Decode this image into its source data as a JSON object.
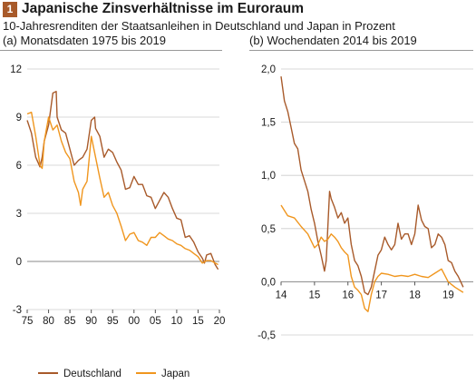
{
  "header": {
    "number": "1",
    "title": "Japanische Zinsverhältnisse im Euroraum",
    "subtitle": "10-Jahresrenditen der Staatsanleihen in Deutschland und Japan in Prozent"
  },
  "colors": {
    "deutschland": "#a85a2a",
    "japan": "#f0961e",
    "grid": "#cccccc",
    "zero": "#888888"
  },
  "chart_data": [
    {
      "type": "line",
      "title": "(a) Monatsdaten 1975 bis 2019",
      "xlabel": "",
      "ylabel": "",
      "xlim": [
        1975,
        2020
      ],
      "ylim": [
        -3,
        12
      ],
      "xticks": [
        75,
        80,
        85,
        90,
        95,
        "00",
        "05",
        10,
        15,
        20
      ],
      "yticks": [
        -3,
        0,
        3,
        6,
        9,
        12
      ],
      "grid": true,
      "series": [
        {
          "name": "Deutschland",
          "x": [
            1975,
            1976,
            1977,
            1978,
            1978.5,
            1979,
            1980,
            1981,
            1981.8,
            1982,
            1983,
            1984,
            1985,
            1986,
            1987,
            1988,
            1989,
            1990,
            1990.8,
            1991,
            1992,
            1993,
            1994,
            1995,
            1996,
            1997,
            1998,
            1999,
            2000,
            2001,
            2002,
            2003,
            2004,
            2005,
            2006,
            2007,
            2008,
            2009,
            2010,
            2011,
            2012,
            2013,
            2014,
            2015,
            2016,
            2016.5,
            2017,
            2018,
            2019,
            2019.7
          ],
          "values": [
            8.8,
            8.0,
            6.5,
            5.9,
            6.5,
            7.5,
            8.5,
            10.5,
            10.6,
            9.0,
            8.2,
            8.0,
            7.0,
            6.0,
            6.3,
            6.5,
            7.0,
            8.8,
            9.0,
            8.3,
            7.8,
            6.5,
            7.0,
            6.8,
            6.2,
            5.7,
            4.5,
            4.6,
            5.3,
            4.8,
            4.8,
            4.1,
            4.0,
            3.3,
            3.8,
            4.3,
            4.0,
            3.3,
            2.7,
            2.6,
            1.5,
            1.6,
            1.2,
            0.6,
            0.2,
            -0.1,
            0.4,
            0.5,
            -0.2,
            -0.5
          ]
        },
        {
          "name": "Japan",
          "x": [
            1975,
            1976,
            1977,
            1978,
            1978.5,
            1979,
            1980,
            1981,
            1982,
            1983,
            1984,
            1985,
            1986,
            1987,
            1987.5,
            1988,
            1989,
            1990,
            1991,
            1992,
            1993,
            1994,
            1995,
            1996,
            1997,
            1998,
            1999,
            2000,
            2001,
            2002,
            2003,
            2004,
            2005,
            2006,
            2007,
            2008,
            2009,
            2010,
            2011,
            2012,
            2013,
            2014,
            2015,
            2016,
            2017,
            2018,
            2019,
            2019.7
          ],
          "values": [
            9.2,
            9.3,
            7.8,
            6.0,
            5.8,
            7.5,
            9.0,
            8.2,
            8.5,
            7.5,
            6.8,
            6.4,
            5.0,
            4.3,
            3.5,
            4.5,
            5.0,
            7.8,
            6.5,
            5.2,
            4.0,
            4.3,
            3.5,
            3.0,
            2.2,
            1.3,
            1.7,
            1.8,
            1.3,
            1.2,
            1.0,
            1.5,
            1.5,
            1.8,
            1.6,
            1.4,
            1.3,
            1.1,
            1.0,
            0.8,
            0.7,
            0.5,
            0.3,
            -0.1,
            0.05,
            0.05,
            -0.1,
            -0.2
          ]
        }
      ]
    },
    {
      "type": "line",
      "title": "(b) Wochendaten 2014 bis 2019",
      "xlabel": "",
      "ylabel": "",
      "xlim": [
        2014,
        2019.75
      ],
      "ylim": [
        -0.5,
        2.0
      ],
      "xticks": [
        14,
        15,
        16,
        17,
        18,
        19
      ],
      "yticks": [
        "-0,5",
        "0,0",
        "0,5",
        "1,0",
        "1,5",
        "2,0"
      ],
      "grid": true,
      "series": [
        {
          "name": "Deutschland",
          "x": [
            2014.0,
            2014.1,
            2014.2,
            2014.3,
            2014.4,
            2014.5,
            2014.6,
            2014.7,
            2014.8,
            2014.9,
            2015.0,
            2015.1,
            2015.2,
            2015.3,
            2015.35,
            2015.45,
            2015.5,
            2015.6,
            2015.7,
            2015.8,
            2015.9,
            2016.0,
            2016.1,
            2016.2,
            2016.3,
            2016.4,
            2016.5,
            2016.6,
            2016.7,
            2016.8,
            2016.9,
            2017.0,
            2017.1,
            2017.2,
            2017.3,
            2017.4,
            2017.5,
            2017.6,
            2017.7,
            2017.8,
            2017.9,
            2018.0,
            2018.1,
            2018.2,
            2018.3,
            2018.4,
            2018.5,
            2018.6,
            2018.7,
            2018.8,
            2018.9,
            2019.0,
            2019.1,
            2019.2,
            2019.3,
            2019.45
          ],
          "values": [
            1.93,
            1.7,
            1.6,
            1.45,
            1.3,
            1.25,
            1.05,
            0.95,
            0.85,
            0.68,
            0.55,
            0.38,
            0.25,
            0.1,
            0.2,
            0.85,
            0.78,
            0.7,
            0.6,
            0.65,
            0.55,
            0.6,
            0.35,
            0.2,
            0.15,
            0.05,
            -0.1,
            -0.12,
            -0.05,
            0.1,
            0.25,
            0.3,
            0.42,
            0.35,
            0.3,
            0.35,
            0.55,
            0.4,
            0.45,
            0.45,
            0.35,
            0.45,
            0.72,
            0.58,
            0.52,
            0.5,
            0.32,
            0.35,
            0.45,
            0.42,
            0.35,
            0.2,
            0.18,
            0.1,
            0.05,
            -0.05
          ]
        },
        {
          "name": "Japan",
          "x": [
            2014.0,
            2014.2,
            2014.4,
            2014.6,
            2014.8,
            2015.0,
            2015.1,
            2015.2,
            2015.3,
            2015.4,
            2015.5,
            2015.6,
            2015.7,
            2015.8,
            2015.9,
            2016.0,
            2016.1,
            2016.2,
            2016.3,
            2016.4,
            2016.5,
            2016.6,
            2016.7,
            2016.8,
            2016.9,
            2017.0,
            2017.2,
            2017.4,
            2017.6,
            2017.8,
            2018.0,
            2018.2,
            2018.4,
            2018.6,
            2018.8,
            2019.0,
            2019.2,
            2019.45
          ],
          "values": [
            0.72,
            0.62,
            0.6,
            0.52,
            0.45,
            0.32,
            0.35,
            0.42,
            0.38,
            0.4,
            0.45,
            0.42,
            0.38,
            0.32,
            0.28,
            0.25,
            0.05,
            -0.05,
            -0.08,
            -0.12,
            -0.25,
            -0.28,
            -0.12,
            0.0,
            0.05,
            0.08,
            0.07,
            0.05,
            0.06,
            0.05,
            0.07,
            0.05,
            0.04,
            0.08,
            0.12,
            0.0,
            -0.05,
            -0.1
          ]
        }
      ]
    }
  ],
  "legend": [
    {
      "key": "deutschland",
      "label": "Deutschland"
    },
    {
      "key": "japan",
      "label": "Japan"
    }
  ]
}
